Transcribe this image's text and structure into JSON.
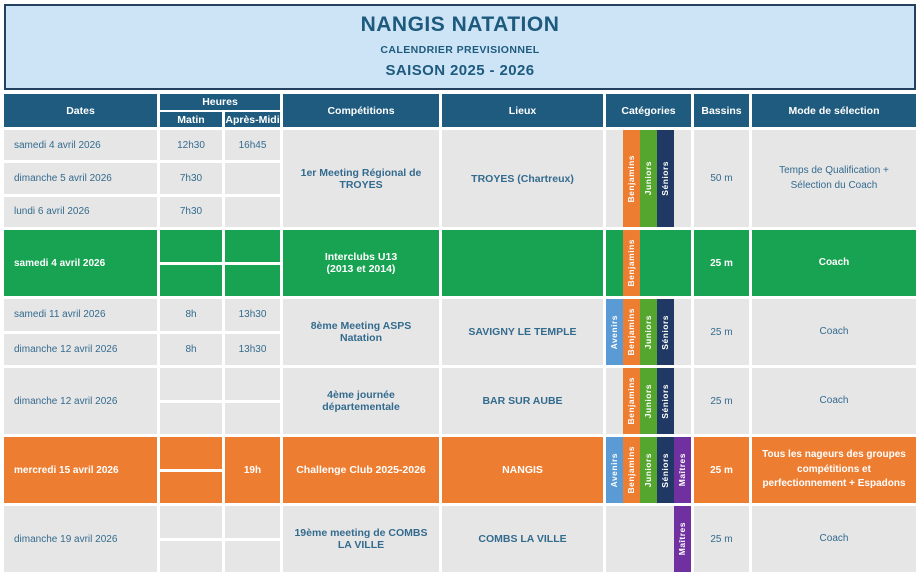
{
  "banner": {
    "title": "NANGIS NATATION",
    "subtitle": "CALENDRIER PREVISIONNEL",
    "season": "SAISON 2025 - 2026"
  },
  "table": {
    "headers": {
      "dates": "Dates",
      "heures": "Heures",
      "matin": "Matin",
      "apres_midi": "Après-Midi",
      "competitions": "Compétitions",
      "lieux": "Lieux",
      "categories": "Catégories",
      "bassins": "Bassins",
      "mode": "Mode de sélection"
    },
    "category_slots": [
      "Avenirs",
      "Benjamins",
      "Juniors",
      "Séniors",
      "Maîtres"
    ],
    "category_colors": {
      "Avenirs": "#5b9bd5",
      "Benjamins": "#ed7d31",
      "Juniors": "#55a62f",
      "Séniors": "#1f3864",
      "Maîtres": "#7030a0"
    },
    "theme_colors": {
      "gray": "#e7e6e6",
      "green": "#17a352",
      "orange": "#ed7d31",
      "header_blue": "#1e5b7e",
      "banner_bg": "#cde4f6",
      "text_blue": "#336b8e"
    },
    "rows": [
      {
        "theme": "gray",
        "dates": [
          "samedi 4 avril 2026",
          "dimanche 5 avril 2026",
          "lundi 6 avril 2026"
        ],
        "matin": [
          "12h30",
          "7h30",
          "7h30"
        ],
        "apres_midi": [
          "16h45",
          "",
          ""
        ],
        "competition": "1er Meeting Régional de TROYES",
        "lieu": "TROYES (Chartreux)",
        "categories": [
          "Benjamins",
          "Juniors",
          "Séniors"
        ],
        "bassin": "50 m",
        "mode": "Temps de Qualification + Sélection du Coach"
      },
      {
        "theme": "green",
        "dates": [
          "samedi 4 avril 2026"
        ],
        "matin": [
          "",
          ""
        ],
        "apres_midi": [
          "",
          ""
        ],
        "competition": "Interclubs U13\n(2013 et 2014)",
        "lieu": "",
        "categories": [
          "Benjamins"
        ],
        "bassin": "25 m",
        "mode": "Coach"
      },
      {
        "theme": "gray",
        "dates": [
          "samedi 11 avril 2026",
          "dimanche 12 avril 2026"
        ],
        "matin": [
          "8h",
          "8h"
        ],
        "apres_midi": [
          "13h30",
          "13h30"
        ],
        "competition": "8ème Meeting ASPS Natation",
        "lieu": "SAVIGNY LE TEMPLE",
        "categories": [
          "Avenirs",
          "Benjamins",
          "Juniors",
          "Séniors"
        ],
        "bassin": "25 m",
        "mode": "Coach"
      },
      {
        "theme": "gray",
        "dates": [
          "dimanche 12 avril 2026"
        ],
        "matin": [
          "",
          ""
        ],
        "apres_midi": [
          "",
          ""
        ],
        "competition": "4ème journée départementale",
        "lieu": "BAR SUR AUBE",
        "categories": [
          "Benjamins",
          "Juniors",
          "Séniors"
        ],
        "bassin": "25 m",
        "mode": "Coach"
      },
      {
        "theme": "orange",
        "dates": [
          "mercredi 15 avril 2026"
        ],
        "matin": [
          "",
          ""
        ],
        "apres_midi": [
          "19h"
        ],
        "competition": "Challenge Club 2025-2026",
        "lieu": "NANGIS",
        "categories": [
          "Avenirs",
          "Benjamins",
          "Juniors",
          "Séniors",
          "Maîtres"
        ],
        "bassin": "25 m",
        "mode": "Tous les nageurs des groupes compétitions et perfectionnement + Espadons"
      },
      {
        "theme": "gray",
        "dates": [
          "dimanche 19 avril 2026"
        ],
        "matin": [
          "",
          ""
        ],
        "apres_midi": [
          "",
          ""
        ],
        "competition": "19ème meeting de COMBS LA VILLE",
        "lieu": "COMBS LA VILLE",
        "categories": [
          "Maîtres"
        ],
        "bassin": "25 m",
        "mode": "Coach"
      }
    ]
  }
}
